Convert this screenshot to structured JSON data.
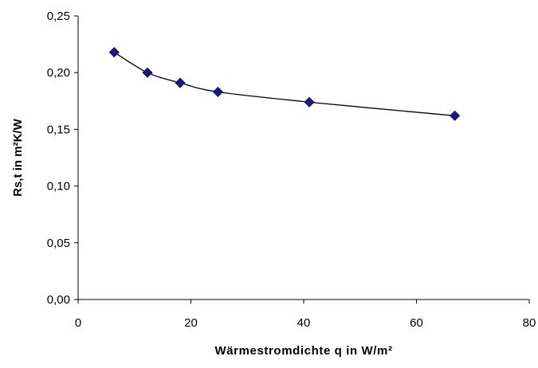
{
  "chart_data": {
    "type": "scatter",
    "title": "",
    "xlabel": "Wärmestromdichte q in W/m²",
    "ylabel": "Rs,t in m²K/W",
    "xlim": [
      0,
      80
    ],
    "ylim": [
      0,
      0.25
    ],
    "x_ticks": [
      {
        "value": 0,
        "label": "0"
      },
      {
        "value": 20,
        "label": "20"
      },
      {
        "value": 40,
        "label": "40"
      },
      {
        "value": 60,
        "label": "60"
      },
      {
        "value": 80,
        "label": "80"
      }
    ],
    "y_ticks": [
      {
        "value": 0,
        "label": "0,00"
      },
      {
        "value": 0.05,
        "label": "0,05"
      },
      {
        "value": 0.1,
        "label": "0,10"
      },
      {
        "value": 0.15,
        "label": "0,15"
      },
      {
        "value": 0.2,
        "label": "0,20"
      },
      {
        "value": 0.25,
        "label": "0,25"
      }
    ],
    "grid": false,
    "legend": "none",
    "marker": "diamond",
    "marker_color": "#1a1a7e",
    "line_color": "#000000",
    "series": [
      {
        "points": [
          {
            "x": 6.4,
            "y": 0.218
          },
          {
            "x": 12.3,
            "y": 0.2
          },
          {
            "x": 18.1,
            "y": 0.191
          },
          {
            "x": 24.8,
            "y": 0.183
          },
          {
            "x": 41.0,
            "y": 0.174
          },
          {
            "x": 66.8,
            "y": 0.162
          }
        ]
      }
    ]
  }
}
